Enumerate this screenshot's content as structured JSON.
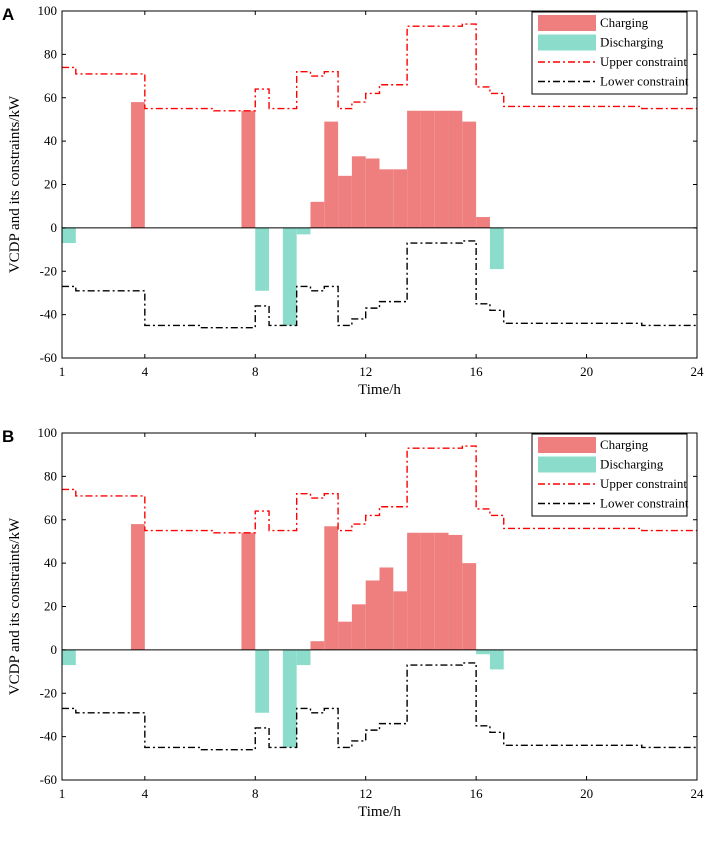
{
  "colors": {
    "charging": "#ef7f7f",
    "discharging": "#8bdccb",
    "upper": "#ff0000",
    "lower": "#000000"
  },
  "chart_data": [
    {
      "panel_label": "A",
      "type": "bar",
      "xlabel": "Time/h",
      "ylabel": "VCDP and its constraints/kW",
      "xlim": [
        1,
        24
      ],
      "ylim": [
        -60,
        100
      ],
      "xticks": [
        1,
        4,
        8,
        12,
        16,
        20,
        24
      ],
      "yticks": [
        -60,
        -40,
        -20,
        0,
        20,
        40,
        60,
        80,
        100
      ],
      "legend_position": "top-right",
      "legend": [
        "Charging",
        "Discharging",
        "Upper constraint",
        "Lower constraint"
      ],
      "bar_width_h": 0.5,
      "charging_bars": [
        {
          "t": 3.5,
          "v": 58
        },
        {
          "t": 7.5,
          "v": 54
        },
        {
          "t": 10.0,
          "v": 12
        },
        {
          "t": 10.5,
          "v": 49
        },
        {
          "t": 11.0,
          "v": 24
        },
        {
          "t": 11.5,
          "v": 33
        },
        {
          "t": 12.0,
          "v": 32
        },
        {
          "t": 12.5,
          "v": 27
        },
        {
          "t": 13.0,
          "v": 27
        },
        {
          "t": 13.5,
          "v": 54
        },
        {
          "t": 14.0,
          "v": 54
        },
        {
          "t": 14.5,
          "v": 54
        },
        {
          "t": 15.0,
          "v": 54
        },
        {
          "t": 15.5,
          "v": 49
        },
        {
          "t": 16.0,
          "v": 5
        }
      ],
      "discharging_bars": [
        {
          "t": 1.0,
          "v": -7
        },
        {
          "t": 8.0,
          "v": -29
        },
        {
          "t": 9.0,
          "v": -45
        },
        {
          "t": 9.5,
          "v": -3
        },
        {
          "t": 16.5,
          "v": -19
        }
      ],
      "upper_constraint": [
        [
          1,
          74
        ],
        [
          1.5,
          71
        ],
        [
          2,
          71
        ],
        [
          2.5,
          71
        ],
        [
          3,
          71
        ],
        [
          3.5,
          71
        ],
        [
          4,
          55
        ],
        [
          4.5,
          55
        ],
        [
          5,
          55
        ],
        [
          5.5,
          55
        ],
        [
          6,
          55
        ],
        [
          6.5,
          54
        ],
        [
          7,
          54
        ],
        [
          7.5,
          54
        ],
        [
          8,
          64
        ],
        [
          8.5,
          55
        ],
        [
          9,
          55
        ],
        [
          9.5,
          72
        ],
        [
          10,
          70
        ],
        [
          10.5,
          72
        ],
        [
          11,
          55
        ],
        [
          11.5,
          58
        ],
        [
          12,
          62
        ],
        [
          12.5,
          66
        ],
        [
          13,
          66
        ],
        [
          13.5,
          93
        ],
        [
          14,
          93
        ],
        [
          14.5,
          93
        ],
        [
          15,
          93
        ],
        [
          15.5,
          94
        ],
        [
          16,
          65
        ],
        [
          16.5,
          62
        ],
        [
          17,
          56
        ],
        [
          17.5,
          56
        ],
        [
          18,
          56
        ],
        [
          18.5,
          56
        ],
        [
          19,
          56
        ],
        [
          19.5,
          56
        ],
        [
          20,
          56
        ],
        [
          20.5,
          56
        ],
        [
          21,
          56
        ],
        [
          21.5,
          56
        ],
        [
          22,
          55
        ],
        [
          22.5,
          55
        ],
        [
          23,
          55
        ],
        [
          23.5,
          55
        ],
        [
          24,
          55
        ]
      ],
      "lower_constraint": [
        [
          1,
          -27
        ],
        [
          1.5,
          -29
        ],
        [
          2,
          -29
        ],
        [
          2.5,
          -29
        ],
        [
          3,
          -29
        ],
        [
          3.5,
          -29
        ],
        [
          4,
          -45
        ],
        [
          4.5,
          -45
        ],
        [
          5,
          -45
        ],
        [
          5.5,
          -45
        ],
        [
          6,
          -46
        ],
        [
          6.5,
          -46
        ],
        [
          7,
          -46
        ],
        [
          7.5,
          -46
        ],
        [
          8,
          -36
        ],
        [
          8.5,
          -45
        ],
        [
          9,
          -45
        ],
        [
          9.5,
          -27
        ],
        [
          10,
          -29
        ],
        [
          10.5,
          -27
        ],
        [
          11,
          -45
        ],
        [
          11.5,
          -42
        ],
        [
          12,
          -37
        ],
        [
          12.5,
          -34
        ],
        [
          13,
          -34
        ],
        [
          13.5,
          -7
        ],
        [
          14,
          -7
        ],
        [
          14.5,
          -7
        ],
        [
          15,
          -7
        ],
        [
          15.5,
          -6
        ],
        [
          16,
          -35
        ],
        [
          16.5,
          -38
        ],
        [
          17,
          -44
        ],
        [
          17.5,
          -44
        ],
        [
          18,
          -44
        ],
        [
          18.5,
          -44
        ],
        [
          19,
          -44
        ],
        [
          19.5,
          -44
        ],
        [
          20,
          -44
        ],
        [
          20.5,
          -44
        ],
        [
          21,
          -44
        ],
        [
          21.5,
          -44
        ],
        [
          22,
          -45
        ],
        [
          22.5,
          -45
        ],
        [
          23,
          -45
        ],
        [
          23.5,
          -45
        ],
        [
          24,
          -45
        ]
      ]
    },
    {
      "panel_label": "B",
      "type": "bar",
      "xlabel": "Time/h",
      "ylabel": "VCDP and its constraints/kW",
      "xlim": [
        1,
        24
      ],
      "ylim": [
        -60,
        100
      ],
      "xticks": [
        1,
        4,
        8,
        12,
        16,
        20,
        24
      ],
      "yticks": [
        -60,
        -40,
        -20,
        0,
        20,
        40,
        60,
        80,
        100
      ],
      "legend_position": "top-right",
      "legend": [
        "Charging",
        "Discharging",
        "Upper constraint",
        "Lower constraint"
      ],
      "bar_width_h": 0.5,
      "charging_bars": [
        {
          "t": 3.5,
          "v": 58
        },
        {
          "t": 7.5,
          "v": 54
        },
        {
          "t": 10.0,
          "v": 4
        },
        {
          "t": 10.5,
          "v": 57
        },
        {
          "t": 11.0,
          "v": 13
        },
        {
          "t": 11.5,
          "v": 21
        },
        {
          "t": 12.0,
          "v": 32
        },
        {
          "t": 12.5,
          "v": 38
        },
        {
          "t": 13.0,
          "v": 27
        },
        {
          "t": 13.5,
          "v": 54
        },
        {
          "t": 14.0,
          "v": 54
        },
        {
          "t": 14.5,
          "v": 54
        },
        {
          "t": 15.0,
          "v": 53
        },
        {
          "t": 15.5,
          "v": 40
        }
      ],
      "discharging_bars": [
        {
          "t": 1.0,
          "v": -7
        },
        {
          "t": 8.0,
          "v": -29
        },
        {
          "t": 9.0,
          "v": -45
        },
        {
          "t": 9.5,
          "v": -7
        },
        {
          "t": 16.0,
          "v": -2
        },
        {
          "t": 16.5,
          "v": -9
        }
      ],
      "upper_constraint": [
        [
          1,
          74
        ],
        [
          1.5,
          71
        ],
        [
          2,
          71
        ],
        [
          2.5,
          71
        ],
        [
          3,
          71
        ],
        [
          3.5,
          71
        ],
        [
          4,
          55
        ],
        [
          4.5,
          55
        ],
        [
          5,
          55
        ],
        [
          5.5,
          55
        ],
        [
          6,
          55
        ],
        [
          6.5,
          54
        ],
        [
          7,
          54
        ],
        [
          7.5,
          54
        ],
        [
          8,
          64
        ],
        [
          8.5,
          55
        ],
        [
          9,
          55
        ],
        [
          9.5,
          72
        ],
        [
          10,
          70
        ],
        [
          10.5,
          72
        ],
        [
          11,
          55
        ],
        [
          11.5,
          58
        ],
        [
          12,
          62
        ],
        [
          12.5,
          66
        ],
        [
          13,
          66
        ],
        [
          13.5,
          93
        ],
        [
          14,
          93
        ],
        [
          14.5,
          93
        ],
        [
          15,
          93
        ],
        [
          15.5,
          94
        ],
        [
          16,
          65
        ],
        [
          16.5,
          62
        ],
        [
          17,
          56
        ],
        [
          17.5,
          56
        ],
        [
          18,
          56
        ],
        [
          18.5,
          56
        ],
        [
          19,
          56
        ],
        [
          19.5,
          56
        ],
        [
          20,
          56
        ],
        [
          20.5,
          56
        ],
        [
          21,
          56
        ],
        [
          21.5,
          56
        ],
        [
          22,
          55
        ],
        [
          22.5,
          55
        ],
        [
          23,
          55
        ],
        [
          23.5,
          55
        ],
        [
          24,
          55
        ]
      ],
      "lower_constraint": [
        [
          1,
          -27
        ],
        [
          1.5,
          -29
        ],
        [
          2,
          -29
        ],
        [
          2.5,
          -29
        ],
        [
          3,
          -29
        ],
        [
          3.5,
          -29
        ],
        [
          4,
          -45
        ],
        [
          4.5,
          -45
        ],
        [
          5,
          -45
        ],
        [
          5.5,
          -45
        ],
        [
          6,
          -46
        ],
        [
          6.5,
          -46
        ],
        [
          7,
          -46
        ],
        [
          7.5,
          -46
        ],
        [
          8,
          -36
        ],
        [
          8.5,
          -45
        ],
        [
          9,
          -45
        ],
        [
          9.5,
          -27
        ],
        [
          10,
          -29
        ],
        [
          10.5,
          -27
        ],
        [
          11,
          -45
        ],
        [
          11.5,
          -42
        ],
        [
          12,
          -37
        ],
        [
          12.5,
          -34
        ],
        [
          13,
          -34
        ],
        [
          13.5,
          -7
        ],
        [
          14,
          -7
        ],
        [
          14.5,
          -7
        ],
        [
          15,
          -7
        ],
        [
          15.5,
          -6
        ],
        [
          16,
          -35
        ],
        [
          16.5,
          -38
        ],
        [
          17,
          -44
        ],
        [
          17.5,
          -44
        ],
        [
          18,
          -44
        ],
        [
          18.5,
          -44
        ],
        [
          19,
          -44
        ],
        [
          19.5,
          -44
        ],
        [
          20,
          -44
        ],
        [
          20.5,
          -44
        ],
        [
          21,
          -44
        ],
        [
          21.5,
          -44
        ],
        [
          22,
          -45
        ],
        [
          22.5,
          -45
        ],
        [
          23,
          -45
        ],
        [
          23.5,
          -45
        ],
        [
          24,
          -45
        ]
      ]
    }
  ]
}
